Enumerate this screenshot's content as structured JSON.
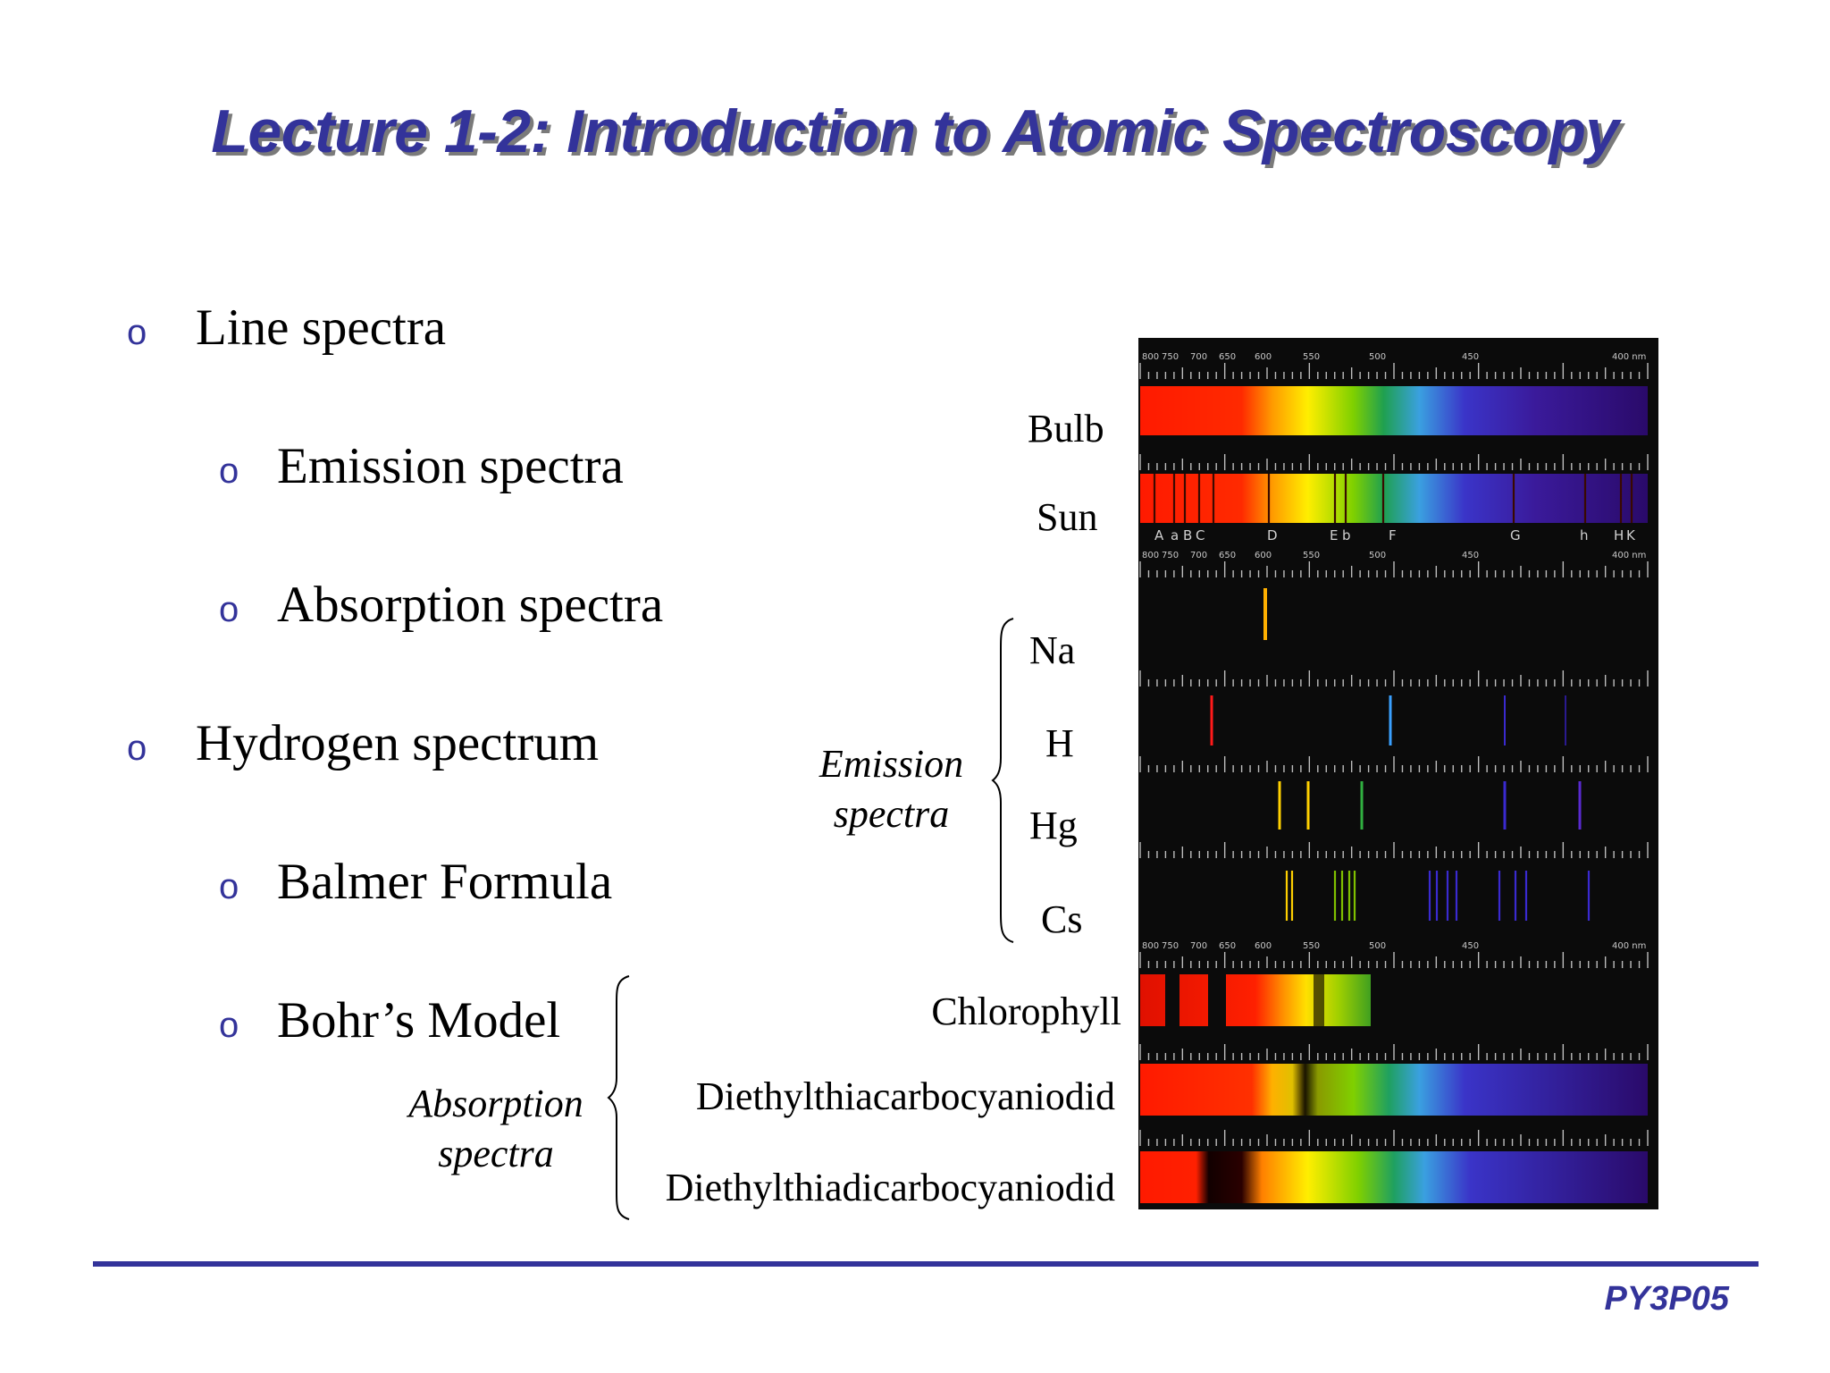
{
  "title": "Lecture 1-2: Introduction to Atomic Spectroscopy",
  "bullet_marker": "o",
  "bullets": [
    {
      "label": "Line spectra",
      "level": 1
    },
    {
      "label": "Emission spectra",
      "level": 2
    },
    {
      "label": "Absorption spectra",
      "level": 2
    },
    {
      "label": "Hydrogen spectrum",
      "level": 1
    },
    {
      "label": "Balmer Formula",
      "level": 2
    },
    {
      "label": "Bohr’s Model",
      "level": 2
    }
  ],
  "figure": {
    "labels": {
      "bulb": "Bulb",
      "sun": "Sun",
      "na": "Na",
      "h": "H",
      "hg": "Hg",
      "cs": "Cs",
      "chlorophyll": "Chlorophyll",
      "dye1": "Diethylthiacarbocyaniodid",
      "dye2": "Diethylthiadicarbocyaniodid"
    },
    "emission_group": [
      "Emission",
      "spectra"
    ],
    "absorption_group": [
      "Absorption",
      "spectra"
    ],
    "scale_labels": [
      "800",
      "750",
      "700",
      "650",
      "600",
      "550",
      "500",
      "450",
      "400 nm"
    ],
    "fraunhofer_labels": [
      "A",
      "a",
      "B",
      "C",
      "D",
      "E",
      "b",
      "F",
      "G",
      "h",
      "H",
      "K"
    ]
  },
  "footer": "PY3P05"
}
